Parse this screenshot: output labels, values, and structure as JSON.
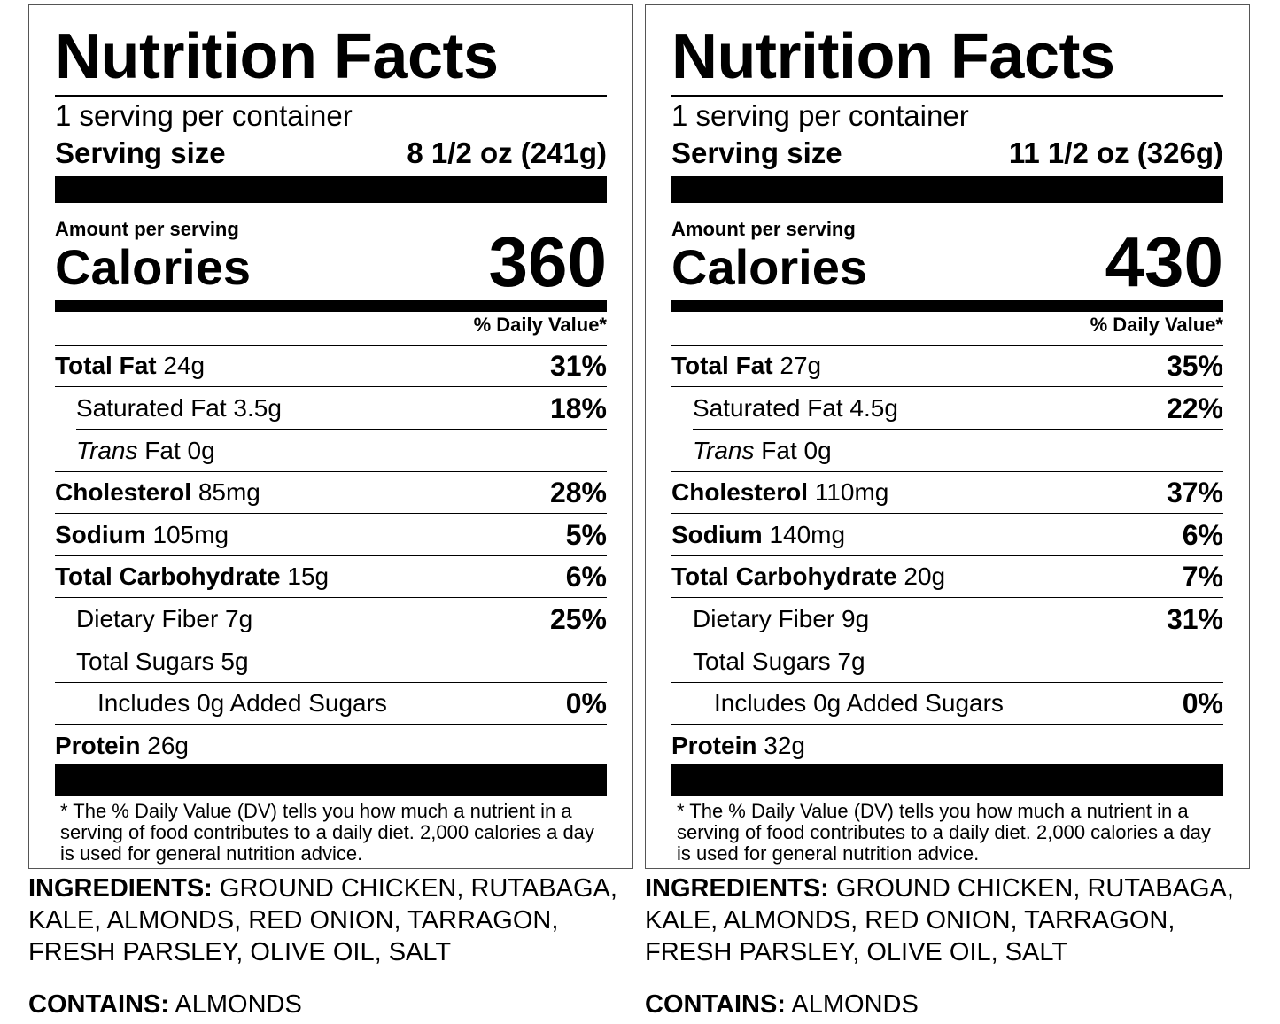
{
  "labels": [
    {
      "title": "Nutrition Facts",
      "servings_per_container": "1 serving per container",
      "serving_size_label": "Serving size",
      "serving_size_value": "8 1/2 oz (241g)",
      "amount_per_serving": "Amount per serving",
      "calories_label": "Calories",
      "calories_value": "360",
      "daily_value_header": "% Daily Value*",
      "nutrients": {
        "total_fat": {
          "label": "Total Fat",
          "amount": "24g",
          "dv": "31%"
        },
        "saturated_fat": {
          "label": "Saturated Fat 3.5g",
          "dv": "18%"
        },
        "trans_fat": {
          "label_italic": "Trans",
          "label": "Fat 0g"
        },
        "cholesterol": {
          "label": "Cholesterol",
          "amount": "85mg",
          "dv": "28%"
        },
        "sodium": {
          "label": "Sodium",
          "amount": "105mg",
          "dv": "5%"
        },
        "total_carbohydrate": {
          "label": "Total Carbohydrate",
          "amount": "15g",
          "dv": "6%"
        },
        "dietary_fiber": {
          "label": "Dietary Fiber 7g",
          "dv": "25%"
        },
        "total_sugars": {
          "label": "Total Sugars 5g"
        },
        "added_sugars": {
          "label": "Includes 0g Added Sugars",
          "dv": "0%"
        },
        "protein": {
          "label": "Protein",
          "amount": "26g"
        }
      },
      "footnote": "* The % Daily Value (DV) tells you how much a nutrient in a serving of food contributes to a daily diet. 2,000 calories a day is used for general nutrition advice.",
      "ingredients_label": "INGREDIENTS:",
      "ingredients_text": "GROUND CHICKEN, RUTABAGA, KALE, ALMONDS, RED ONION, TARRAGON, FRESH PARSLEY, OLIVE OIL, SALT",
      "contains_label": "CONTAINS:",
      "contains_text": "ALMONDS"
    },
    {
      "title": "Nutrition Facts",
      "servings_per_container": "1 serving per container",
      "serving_size_label": "Serving size",
      "serving_size_value": "11 1/2 oz (326g)",
      "amount_per_serving": "Amount per serving",
      "calories_label": "Calories",
      "calories_value": "430",
      "daily_value_header": "% Daily Value*",
      "nutrients": {
        "total_fat": {
          "label": "Total Fat",
          "amount": "27g",
          "dv": "35%"
        },
        "saturated_fat": {
          "label": "Saturated Fat 4.5g",
          "dv": "22%"
        },
        "trans_fat": {
          "label_italic": "Trans",
          "label": "Fat 0g"
        },
        "cholesterol": {
          "label": "Cholesterol",
          "amount": "110mg",
          "dv": "37%"
        },
        "sodium": {
          "label": "Sodium",
          "amount": "140mg",
          "dv": "6%"
        },
        "total_carbohydrate": {
          "label": "Total Carbohydrate",
          "amount": "20g",
          "dv": "7%"
        },
        "dietary_fiber": {
          "label": "Dietary Fiber 9g",
          "dv": "31%"
        },
        "total_sugars": {
          "label": "Total Sugars 7g"
        },
        "added_sugars": {
          "label": "Includes 0g Added Sugars",
          "dv": "0%"
        },
        "protein": {
          "label": "Protein",
          "amount": "32g"
        }
      },
      "footnote": "* The % Daily Value (DV) tells you how much a nutrient in a serving of food contributes to a daily diet. 2,000 calories a day is used for general nutrition advice.",
      "ingredients_label": "INGREDIENTS:",
      "ingredients_text": "GROUND CHICKEN, RUTABAGA, KALE, ALMONDS, RED ONION, TARRAGON, FRESH PARSLEY, OLIVE OIL, SALT",
      "contains_label": "CONTAINS:",
      "contains_text": "ALMONDS"
    }
  ]
}
